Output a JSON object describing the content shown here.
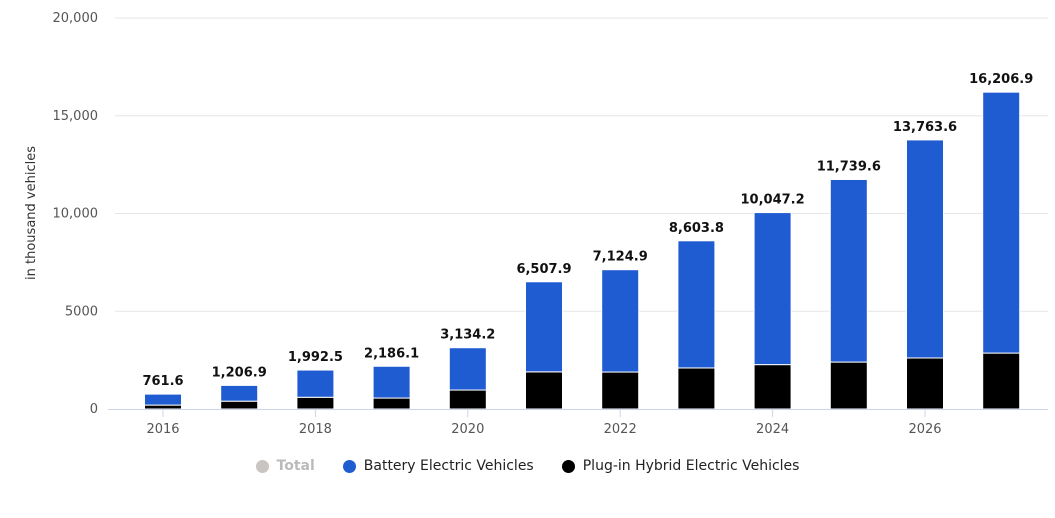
{
  "chart_data": {
    "type": "bar",
    "stacked": true,
    "title": "",
    "xlabel": "",
    "ylabel": "in thousand vehicles",
    "ylim": [
      0,
      20000
    ],
    "yticks": [
      0,
      5000,
      10000,
      15000,
      20000
    ],
    "ytick_labels": [
      "0",
      "5000",
      "10,000",
      "15,000",
      "20,000"
    ],
    "xtick_labels": [
      "2016",
      "2018",
      "2020",
      "2022",
      "2024",
      "2026"
    ],
    "grid": true,
    "legend_position": "bottom-center",
    "categories": [
      "2016",
      "2017",
      "2018",
      "2019",
      "2020",
      "2021",
      "2022",
      "2023",
      "2024",
      "2025",
      "2026",
      "2027"
    ],
    "totals": [
      761.6,
      1206.9,
      1992.5,
      2186.1,
      3134.2,
      6507.9,
      7124.9,
      8603.8,
      10047.2,
      11739.6,
      13763.6,
      16206.9
    ],
    "total_labels": [
      "761.6",
      "1,206.9",
      "1,992.5",
      "2,186.1",
      "3,134.2",
      "6,507.9",
      "7,124.9",
      "8,603.8",
      "10,047.2",
      "11,739.6",
      "13,763.6",
      "16,206.9"
    ],
    "series": [
      {
        "name": "Plug-in Hybrid Electric Vehicles",
        "color": "#000000",
        "values": [
          200,
          400,
          600,
          560,
          970,
          1900,
          1890,
          2100,
          2270,
          2400,
          2610,
          2860
        ]
      },
      {
        "name": "Battery Electric Vehicles",
        "color": "#1f5bd1",
        "values": [
          561.6,
          806.9,
          1392.5,
          1626.1,
          2164.2,
          4607.9,
          5234.9,
          6503.8,
          7777.2,
          9339.6,
          11153.6,
          13346.9
        ]
      }
    ]
  },
  "legend": [
    {
      "label": "Total",
      "color": "#c8c5c2",
      "disabled": true
    },
    {
      "label": "Battery Electric Vehicles",
      "color": "#1f5bd1",
      "disabled": false
    },
    {
      "label": "Plug-in Hybrid Electric Vehicles",
      "color": "#000000",
      "disabled": false
    }
  ]
}
